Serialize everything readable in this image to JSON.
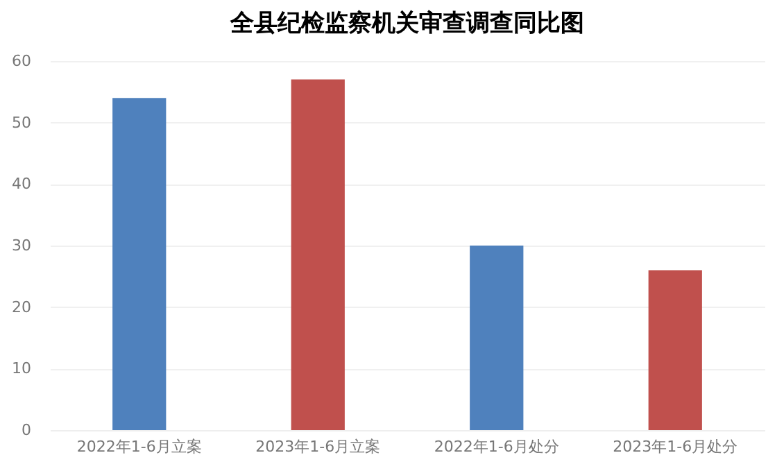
{
  "chart_data": {
    "type": "bar",
    "title": "全县纪检监察机关审查调查同比图",
    "categories": [
      "2022年1-6月立案",
      "2023年1-6月立案",
      "2022年1-6月处分",
      "2023年1-6月处分"
    ],
    "values": [
      54,
      57,
      30,
      26
    ],
    "colors": [
      "#4f81bd",
      "#c0504d",
      "#4f81bd",
      "#c0504d"
    ],
    "ylim": [
      0,
      60
    ],
    "yticks": [
      0,
      10,
      20,
      30,
      40,
      50,
      60
    ],
    "grid": "y"
  }
}
